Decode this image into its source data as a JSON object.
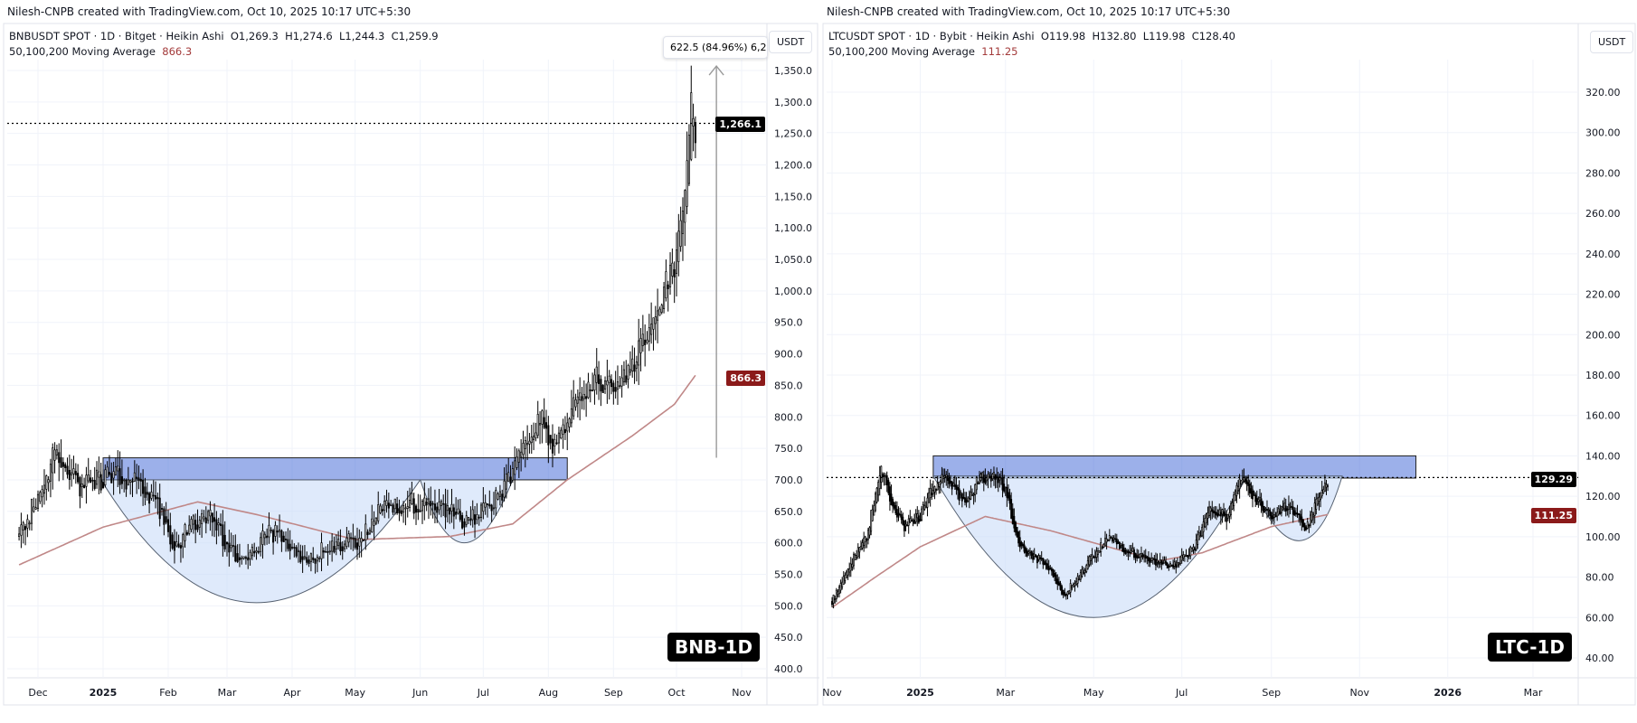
{
  "attribution": "Nilesh-CNPB created with TradingView.com, Oct 10, 2025 10:17 UTC+5:30",
  "chart_data": [
    {
      "type": "candlestick",
      "symbol_line": "BNBUSDT SPOT · 1D · Bitget · Heikin Ashi",
      "ohlc": {
        "o": "O1,269.3",
        "h": "H1,274.6",
        "l": "L1,244.3",
        "c": "C1,259.9"
      },
      "indicator_label": "50,100,200 Moving Average",
      "indicator_value": "866.3",
      "unit": "USDT",
      "badge": "BNB-1D",
      "last_price_label": "1,266.1",
      "last_price": 1266.1,
      "ma_label": "866.3",
      "measure_label": "622.5 (84.96%) 6,2",
      "measure": {
        "from": 735,
        "to": 1357,
        "date": "2025-10-20"
      },
      "ylim": [
        400,
        1350
      ],
      "yticks": [
        "1,350.0",
        "1,300.0",
        "1,250.0",
        "1,200.0",
        "1,150.0",
        "1,100.0",
        "1,050.0",
        "1,000.0",
        "950.0",
        "900.0",
        "850.0",
        "800.0",
        "750.0",
        "700.0",
        "650.0",
        "600.0",
        "550.0",
        "500.0",
        "450.0",
        "400.0"
      ],
      "ytick_values": [
        1350,
        1300,
        1250,
        1200,
        1150,
        1100,
        1050,
        1000,
        950,
        900,
        850,
        800,
        750,
        700,
        650,
        600,
        550,
        500,
        450,
        400
      ],
      "xticks": [
        [
          "Dec",
          "2024-12-01"
        ],
        [
          "2025",
          "2025-01-01"
        ],
        [
          "Feb",
          "2025-02-01"
        ],
        [
          "Mar",
          "2025-03-01"
        ],
        [
          "Apr",
          "2025-04-01"
        ],
        [
          "May",
          "2025-05-01"
        ],
        [
          "Jun",
          "2025-06-01"
        ],
        [
          "Jul",
          "2025-07-01"
        ],
        [
          "Aug",
          "2025-08-01"
        ],
        [
          "Sep",
          "2025-09-01"
        ],
        [
          "Oct",
          "2025-10-01"
        ],
        [
          "Nov",
          "2025-11-01"
        ]
      ],
      "price_path": [
        [
          "2024-11-22",
          610
        ],
        [
          "2024-12-03",
          690
        ],
        [
          "2024-12-10",
          750
        ],
        [
          "2024-12-20",
          690
        ],
        [
          "2024-12-31",
          700
        ],
        [
          "2025-01-07",
          710
        ],
        [
          "2025-01-20",
          690
        ],
        [
          "2025-01-27",
          660
        ],
        [
          "2025-02-03",
          585
        ],
        [
          "2025-02-10",
          620
        ],
        [
          "2025-02-20",
          645
        ],
        [
          "2025-03-01",
          600
        ],
        [
          "2025-03-10",
          565
        ],
        [
          "2025-03-20",
          620
        ],
        [
          "2025-04-01",
          600
        ],
        [
          "2025-04-08",
          565
        ],
        [
          "2025-04-20",
          600
        ],
        [
          "2025-05-01",
          600
        ],
        [
          "2025-05-12",
          650
        ],
        [
          "2025-05-25",
          665
        ],
        [
          "2025-06-05",
          660
        ],
        [
          "2025-06-15",
          650
        ],
        [
          "2025-06-22",
          630
        ],
        [
          "2025-07-01",
          650
        ],
        [
          "2025-07-10",
          680
        ],
        [
          "2025-07-20",
          760
        ],
        [
          "2025-07-28",
          800
        ],
        [
          "2025-08-03",
          760
        ],
        [
          "2025-08-10",
          800
        ],
        [
          "2025-08-22",
          860
        ],
        [
          "2025-09-01",
          850
        ],
        [
          "2025-09-10",
          880
        ],
        [
          "2025-09-20",
          950
        ],
        [
          "2025-09-25",
          1000
        ],
        [
          "2025-10-01",
          1050
        ],
        [
          "2025-10-05",
          1150
        ],
        [
          "2025-10-08",
          1300
        ],
        [
          "2025-10-10",
          1262
        ]
      ],
      "ma_path": [
        [
          "2024-11-22",
          565
        ],
        [
          "2025-01-01",
          625
        ],
        [
          "2025-02-15",
          665
        ],
        [
          "2025-03-15",
          645
        ],
        [
          "2025-05-01",
          605
        ],
        [
          "2025-06-15",
          610
        ],
        [
          "2025-07-15",
          630
        ],
        [
          "2025-08-10",
          700
        ],
        [
          "2025-09-10",
          770
        ],
        [
          "2025-09-30",
          820
        ],
        [
          "2025-10-10",
          866
        ]
      ],
      "zone": {
        "from": "2025-01-01",
        "to": "2025-08-10",
        "low": 700,
        "high": 735
      },
      "cup": [
        [
          "2024-12-31",
          700
        ],
        [
          "2025-03-15",
          505
        ],
        [
          "2025-06-01",
          700
        ]
      ],
      "handle": [
        [
          "2025-06-01",
          700
        ],
        [
          "2025-06-22",
          600
        ],
        [
          "2025-07-15",
          700
        ]
      ]
    },
    {
      "type": "candlestick",
      "symbol_line": "LTCUSDT SPOT · 1D · Bybit · Heikin Ashi",
      "ohlc": {
        "o": "O119.98",
        "h": "H132.80",
        "l": "L119.98",
        "c": "C128.40"
      },
      "indicator_label": "50,100,200 Moving Average",
      "indicator_value": "111.25",
      "unit": "USDT",
      "badge": "LTC-1D",
      "last_price_label": "129.29",
      "last_price": 129.29,
      "ma_label": "111.25",
      "ylim": [
        40,
        320
      ],
      "yticks": [
        "320.00",
        "300.00",
        "280.00",
        "260.00",
        "240.00",
        "220.00",
        "200.00",
        "180.00",
        "160.00",
        "140.00",
        "120.00",
        "100.00",
        "80.00",
        "60.00",
        "40.00"
      ],
      "ytick_values": [
        320,
        300,
        280,
        260,
        240,
        220,
        200,
        180,
        160,
        140,
        120,
        100,
        80,
        60,
        40
      ],
      "xticks": [
        [
          "Nov",
          "2024-11-01"
        ],
        [
          "2025",
          "2025-01-01"
        ],
        [
          "Mar",
          "2025-03-01"
        ],
        [
          "May",
          "2025-05-01"
        ],
        [
          "Jul",
          "2025-07-01"
        ],
        [
          "Sep",
          "2025-09-01"
        ],
        [
          "Nov",
          "2025-11-01"
        ],
        [
          "2026",
          "2026-01-01"
        ],
        [
          "Mar",
          "2026-03-01"
        ]
      ],
      "price_path": [
        [
          "2024-11-01",
          68
        ],
        [
          "2024-11-15",
          88
        ],
        [
          "2024-11-25",
          100
        ],
        [
          "2024-12-05",
          135
        ],
        [
          "2024-12-10",
          122
        ],
        [
          "2024-12-20",
          105
        ],
        [
          "2025-01-01",
          110
        ],
        [
          "2025-01-10",
          125
        ],
        [
          "2025-01-20",
          130
        ],
        [
          "2025-02-01",
          115
        ],
        [
          "2025-02-10",
          128
        ],
        [
          "2025-02-20",
          130
        ],
        [
          "2025-03-01",
          125
        ],
        [
          "2025-03-10",
          95
        ],
        [
          "2025-04-01",
          85
        ],
        [
          "2025-04-10",
          70
        ],
        [
          "2025-04-20",
          80
        ],
        [
          "2025-05-10",
          100
        ],
        [
          "2025-05-20",
          95
        ],
        [
          "2025-06-10",
          88
        ],
        [
          "2025-06-25",
          85
        ],
        [
          "2025-07-10",
          95
        ],
        [
          "2025-07-20",
          115
        ],
        [
          "2025-08-01",
          110
        ],
        [
          "2025-08-10",
          130
        ],
        [
          "2025-08-20",
          120
        ],
        [
          "2025-09-01",
          110
        ],
        [
          "2025-09-10",
          115
        ],
        [
          "2025-09-20",
          110
        ],
        [
          "2025-09-25",
          103
        ],
        [
          "2025-10-01",
          115
        ],
        [
          "2025-10-10",
          128
        ]
      ],
      "ma_path": [
        [
          "2024-11-01",
          65
        ],
        [
          "2024-12-01",
          80
        ],
        [
          "2025-01-01",
          95
        ],
        [
          "2025-02-15",
          110
        ],
        [
          "2025-04-01",
          103
        ],
        [
          "2025-05-01",
          97
        ],
        [
          "2025-06-15",
          88
        ],
        [
          "2025-07-15",
          92
        ],
        [
          "2025-09-01",
          105
        ],
        [
          "2025-10-10",
          111
        ]
      ],
      "zone": {
        "from": "2025-01-10",
        "to": "2025-12-10",
        "low": 129,
        "high": 140
      },
      "cup": [
        [
          "2025-01-10",
          130
        ],
        [
          "2025-05-01",
          60
        ],
        [
          "2025-08-15",
          130
        ]
      ],
      "handle": [
        [
          "2025-08-15",
          130
        ],
        [
          "2025-09-20",
          98
        ],
        [
          "2025-10-20",
          130
        ]
      ]
    }
  ],
  "colors": {
    "zone": "#4a6fd8",
    "cup": "#c9dcf8",
    "ma": "#c08888",
    "last_tag": "#000000",
    "ma_tag": "#8b1a1a",
    "grid": "#f0f3fa"
  }
}
